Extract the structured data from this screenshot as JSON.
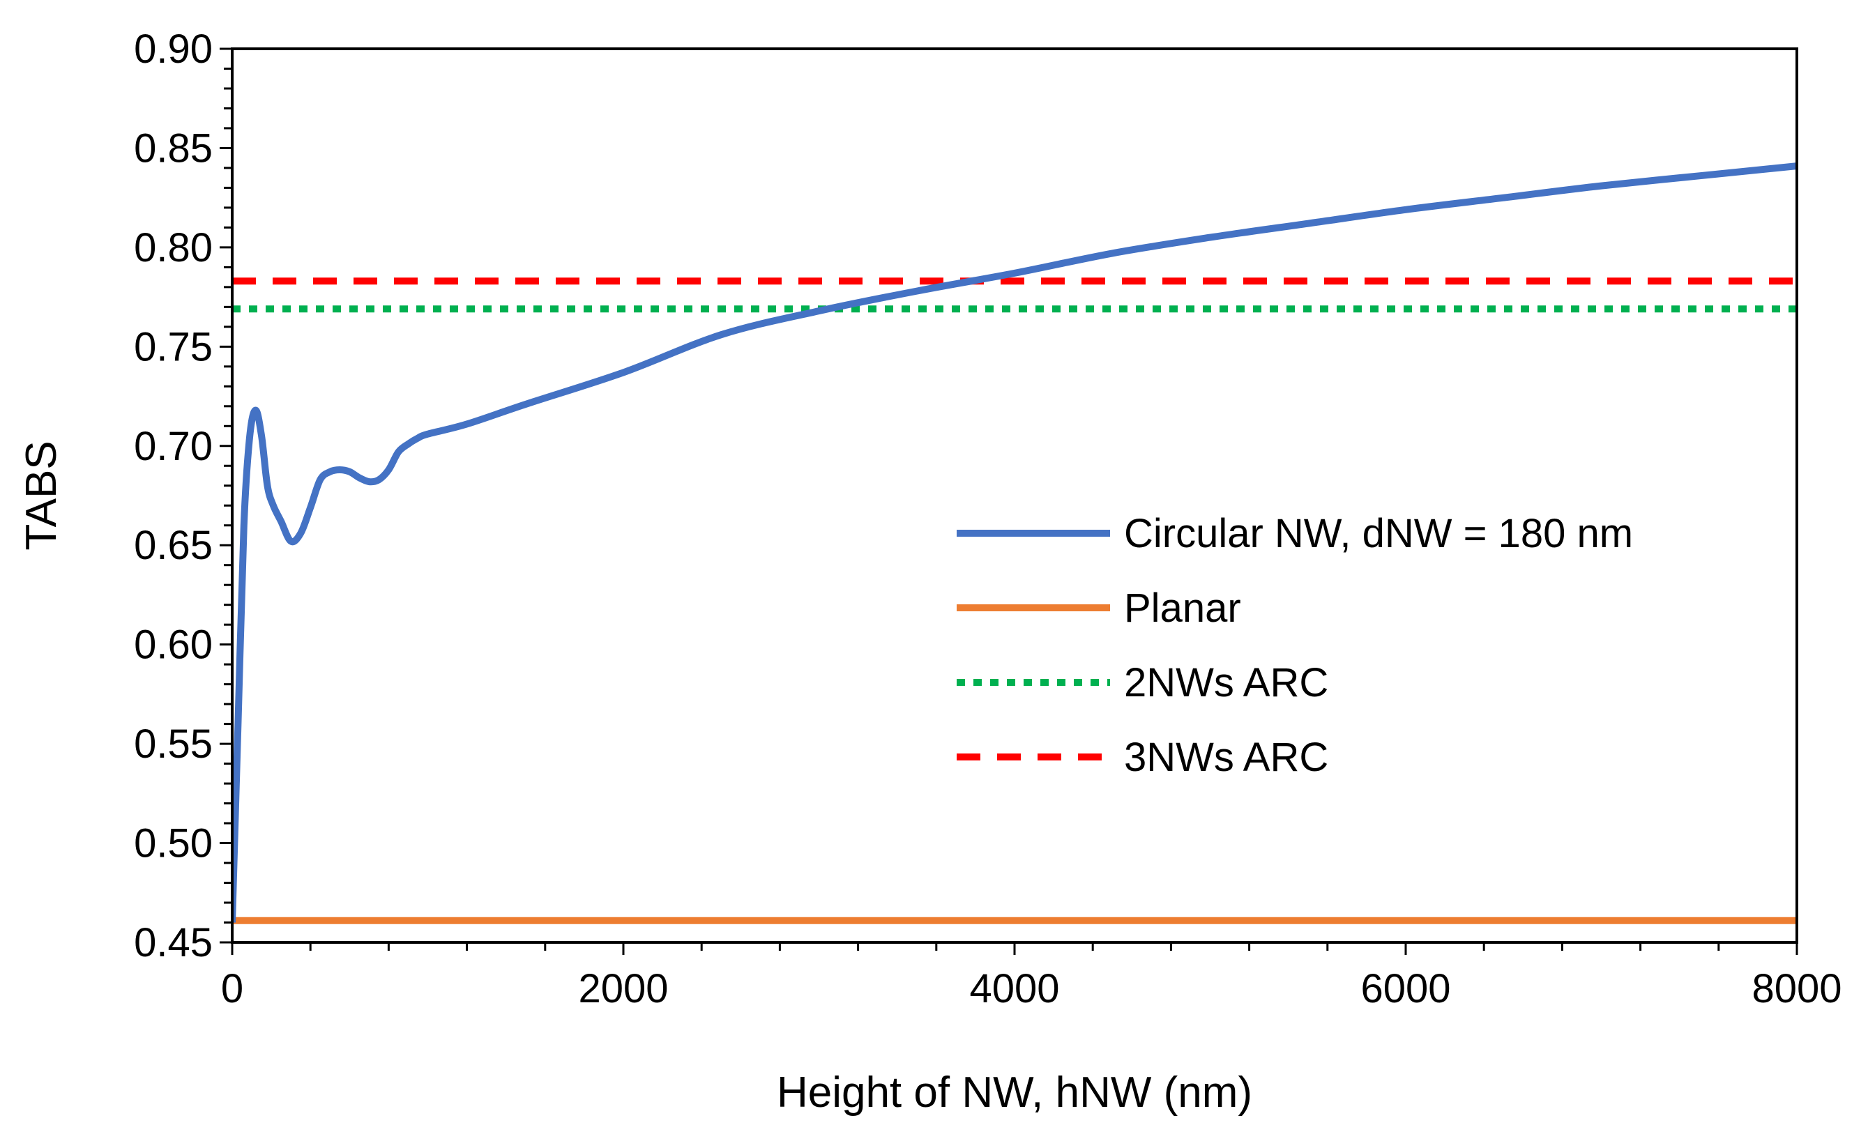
{
  "chart_data": {
    "type": "line",
    "title": "",
    "xlabel": "Height of NW, hNW (nm)",
    "ylabel": "TABS",
    "xlim": [
      0,
      8000
    ],
    "ylim": [
      0.45,
      0.9
    ],
    "x_ticks": [
      0,
      2000,
      4000,
      6000,
      8000
    ],
    "x_tick_labels": [
      "0",
      "2000",
      "4000",
      "6000",
      "8000"
    ],
    "y_ticks": [
      0.45,
      0.5,
      0.55,
      0.6,
      0.65,
      0.7,
      0.75,
      0.8,
      0.85,
      0.9
    ],
    "y_tick_labels": [
      "0.45",
      "0.50",
      "0.55",
      "0.60",
      "0.65",
      "0.70",
      "0.75",
      "0.80",
      "0.85",
      "0.90"
    ],
    "grid": false,
    "legend_position": "right-center",
    "series": [
      {
        "name": "Circular NW, dNW = 180 nm",
        "color": "#4472C4",
        "style": "solid",
        "x": [
          0,
          30,
          60,
          90,
          120,
          150,
          180,
          210,
          250,
          300,
          350,
          400,
          450,
          500,
          550,
          600,
          650,
          700,
          750,
          800,
          850,
          900,
          950,
          1000,
          1200,
          1500,
          2000,
          2500,
          3000,
          3500,
          4000,
          4500,
          5000,
          5500,
          6000,
          6500,
          7000,
          7500,
          8000
        ],
        "y": [
          0.46,
          0.56,
          0.66,
          0.705,
          0.718,
          0.705,
          0.68,
          0.67,
          0.662,
          0.652,
          0.656,
          0.669,
          0.683,
          0.687,
          0.688,
          0.687,
          0.684,
          0.682,
          0.683,
          0.688,
          0.697,
          0.701,
          0.704,
          0.706,
          0.711,
          0.721,
          0.737,
          0.756,
          0.768,
          0.778,
          0.787,
          0.797,
          0.805,
          0.812,
          0.819,
          0.825,
          0.831,
          0.836,
          0.841
        ]
      },
      {
        "name": "Planar",
        "color": "#ED7D31",
        "style": "solid",
        "x": [
          0,
          8000
        ],
        "y": [
          0.461,
          0.461
        ]
      },
      {
        "name": "2NWs ARC",
        "color": "#00B050",
        "style": "dotted",
        "x": [
          0,
          8000
        ],
        "y": [
          0.769,
          0.769
        ]
      },
      {
        "name": "3NWs ARC",
        "color": "#FF0000",
        "style": "dashed",
        "x": [
          0,
          8000
        ],
        "y": [
          0.783,
          0.783
        ]
      }
    ]
  }
}
